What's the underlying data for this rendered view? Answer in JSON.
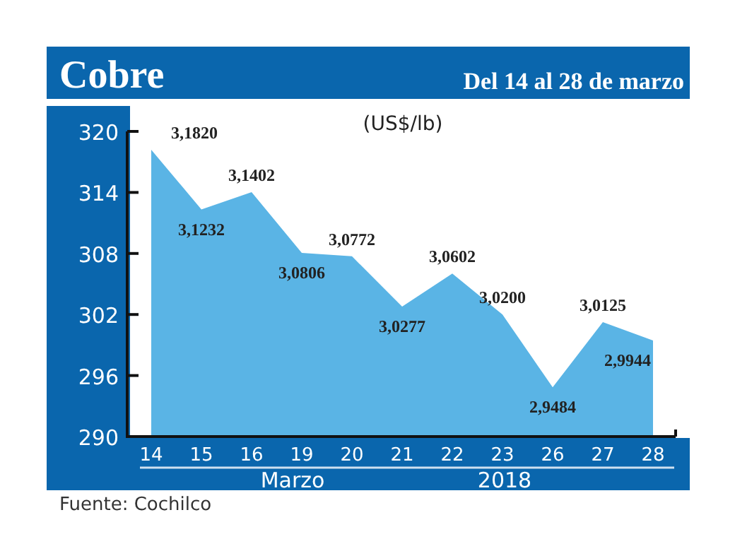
{
  "chart_data": {
    "type": "area",
    "title": "Cobre",
    "subtitle": "Del 14 al 28 de marzo",
    "ylabel": "(US$/lb)",
    "xlabel": "Marzo",
    "annotations": [
      "2018",
      "Fuente: Cochilco"
    ],
    "categories": [
      "14",
      "15",
      "16",
      "19",
      "20",
      "21",
      "22",
      "23",
      "26",
      "27",
      "28"
    ],
    "series": [
      {
        "color": "#5ab4e5",
        "values": [
          318.2,
          312.32,
          314.02,
          308.06,
          307.72,
          302.77,
          306.02,
          302.0,
          294.84,
          301.25,
          299.44
        ],
        "value_labels": [
          "3,1820",
          "3,1232",
          "3,1402",
          "3,0806",
          "3,0772",
          "3,0277",
          "3,0602",
          "3,0200",
          "2,9484",
          "3,0125",
          "2,9944"
        ]
      }
    ],
    "ylim": [
      290,
      320
    ],
    "yticks": [
      290,
      296,
      302,
      308,
      314,
      320
    ],
    "grid": false
  }
}
